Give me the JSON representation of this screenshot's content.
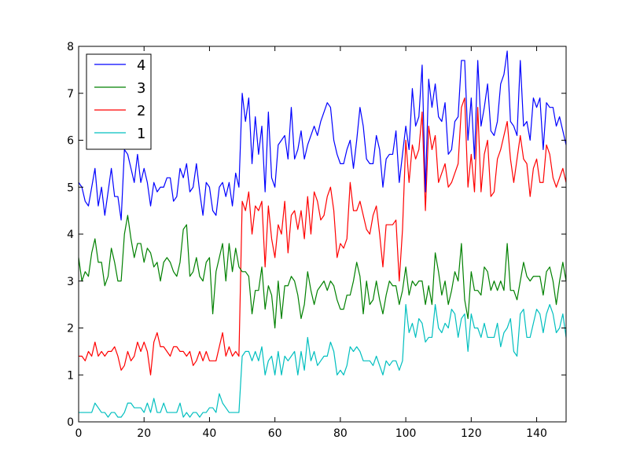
{
  "chart_data": {
    "type": "line",
    "title": "",
    "xlabel": "",
    "ylabel": "",
    "xlim": [
      0,
      149
    ],
    "ylim": [
      0,
      8
    ],
    "xticks": [
      0,
      20,
      40,
      60,
      80,
      100,
      120,
      140
    ],
    "yticks": [
      0,
      1,
      2,
      3,
      4,
      5,
      6,
      7,
      8
    ],
    "grid": false,
    "legend_position": "top-left",
    "series": [
      {
        "name": "4",
        "color": "#0000ff",
        "values": [
          5.1,
          5.0,
          4.7,
          4.6,
          5.0,
          5.4,
          4.6,
          5.0,
          4.4,
          4.9,
          5.4,
          4.8,
          4.8,
          4.3,
          5.8,
          5.7,
          5.4,
          5.1,
          5.7,
          5.1,
          5.4,
          5.1,
          4.6,
          5.1,
          4.9,
          5.0,
          5.0,
          5.2,
          5.2,
          4.7,
          4.8,
          5.4,
          5.2,
          5.5,
          4.9,
          5.0,
          5.5,
          4.9,
          4.4,
          5.1,
          5.0,
          4.5,
          4.4,
          5.0,
          5.1,
          4.8,
          5.1,
          4.6,
          5.3,
          5.0,
          7.0,
          6.4,
          6.9,
          5.5,
          6.5,
          5.7,
          6.3,
          4.9,
          6.6,
          5.2,
          5.0,
          5.9,
          6.0,
          6.1,
          5.6,
          6.7,
          5.6,
          5.8,
          6.2,
          5.6,
          5.9,
          6.1,
          6.3,
          6.1,
          6.4,
          6.6,
          6.8,
          6.7,
          6.0,
          5.7,
          5.5,
          5.5,
          5.8,
          6.0,
          5.4,
          6.0,
          6.7,
          6.3,
          5.6,
          5.5,
          5.5,
          6.1,
          5.8,
          5.0,
          5.6,
          5.7,
          5.7,
          6.2,
          5.1,
          5.7,
          6.3,
          5.8,
          7.1,
          6.3,
          6.5,
          7.6,
          4.9,
          7.3,
          6.7,
          7.2,
          6.5,
          6.4,
          6.8,
          5.7,
          5.8,
          6.4,
          6.5,
          7.7,
          7.7,
          6.0,
          6.9,
          5.6,
          7.7,
          6.3,
          6.7,
          7.2,
          6.2,
          6.1,
          6.4,
          7.2,
          7.4,
          7.9,
          6.4,
          6.3,
          6.1,
          7.7,
          6.3,
          6.4,
          6.0,
          6.9,
          6.7,
          6.9,
          5.8,
          6.8,
          6.7,
          6.7,
          6.3,
          6.5,
          6.2,
          5.9
        ]
      },
      {
        "name": "3",
        "color": "#008000",
        "values": [
          3.5,
          3.0,
          3.2,
          3.1,
          3.6,
          3.9,
          3.4,
          3.4,
          2.9,
          3.1,
          3.7,
          3.4,
          3.0,
          3.0,
          4.0,
          4.4,
          3.9,
          3.5,
          3.8,
          3.8,
          3.4,
          3.7,
          3.6,
          3.3,
          3.4,
          3.0,
          3.4,
          3.5,
          3.4,
          3.2,
          3.1,
          3.4,
          4.1,
          4.2,
          3.1,
          3.2,
          3.5,
          3.1,
          3.0,
          3.4,
          3.5,
          2.3,
          3.2,
          3.5,
          3.8,
          3.0,
          3.8,
          3.2,
          3.7,
          3.3,
          3.2,
          3.2,
          3.1,
          2.3,
          2.8,
          2.8,
          3.3,
          2.4,
          2.9,
          2.7,
          2.0,
          3.0,
          2.2,
          2.9,
          2.9,
          3.1,
          3.0,
          2.7,
          2.2,
          2.5,
          3.2,
          2.8,
          2.5,
          2.8,
          2.9,
          3.0,
          2.8,
          3.0,
          2.9,
          2.6,
          2.4,
          2.4,
          2.7,
          2.7,
          3.0,
          3.4,
          3.1,
          2.3,
          3.0,
          2.5,
          2.6,
          3.0,
          2.6,
          2.3,
          2.7,
          3.0,
          2.9,
          2.9,
          2.5,
          2.8,
          3.3,
          2.7,
          3.0,
          2.9,
          3.0,
          3.0,
          2.5,
          2.9,
          2.5,
          3.6,
          3.2,
          2.7,
          3.0,
          2.5,
          2.8,
          3.2,
          3.0,
          3.8,
          2.6,
          2.2,
          3.2,
          2.8,
          2.8,
          2.7,
          3.3,
          3.2,
          2.8,
          3.0,
          2.8,
          3.0,
          2.8,
          3.8,
          2.8,
          2.8,
          2.6,
          3.0,
          3.4,
          3.1,
          3.0,
          3.1,
          3.1,
          3.1,
          2.7,
          3.2,
          3.3,
          3.0,
          2.5,
          3.0,
          3.4,
          3.0
        ]
      },
      {
        "name": "2",
        "color": "#ff0000",
        "values": [
          1.4,
          1.4,
          1.3,
          1.5,
          1.4,
          1.7,
          1.4,
          1.5,
          1.4,
          1.5,
          1.5,
          1.6,
          1.4,
          1.1,
          1.2,
          1.5,
          1.3,
          1.4,
          1.7,
          1.5,
          1.7,
          1.5,
          1.0,
          1.7,
          1.9,
          1.6,
          1.6,
          1.5,
          1.4,
          1.6,
          1.6,
          1.5,
          1.5,
          1.4,
          1.5,
          1.2,
          1.3,
          1.5,
          1.3,
          1.5,
          1.3,
          1.3,
          1.3,
          1.6,
          1.9,
          1.4,
          1.6,
          1.4,
          1.5,
          1.4,
          4.7,
          4.5,
          4.9,
          4.0,
          4.6,
          4.5,
          4.7,
          3.3,
          4.6,
          3.9,
          3.5,
          4.2,
          4.0,
          4.7,
          3.6,
          4.4,
          4.5,
          4.1,
          4.5,
          3.9,
          4.8,
          4.0,
          4.9,
          4.7,
          4.3,
          4.4,
          4.8,
          5.0,
          4.5,
          3.5,
          3.8,
          3.7,
          3.9,
          5.1,
          4.5,
          4.5,
          4.7,
          4.4,
          4.1,
          4.0,
          4.4,
          4.6,
          4.0,
          3.3,
          4.2,
          4.2,
          4.2,
          4.3,
          3.0,
          4.1,
          6.0,
          5.1,
          5.9,
          5.6,
          5.8,
          6.6,
          4.5,
          6.3,
          5.8,
          6.1,
          5.1,
          5.3,
          5.5,
          5.0,
          5.1,
          5.3,
          5.5,
          6.7,
          6.9,
          5.0,
          5.7,
          4.9,
          6.7,
          4.9,
          5.7,
          6.0,
          4.8,
          4.9,
          5.6,
          5.8,
          6.1,
          6.4,
          5.6,
          5.1,
          5.6,
          6.1,
          5.6,
          5.5,
          4.8,
          5.4,
          5.6,
          5.1,
          5.1,
          5.9,
          5.7,
          5.2,
          5.0,
          5.2,
          5.4,
          5.1
        ]
      },
      {
        "name": "1",
        "color": "#00bfbf",
        "values": [
          0.2,
          0.2,
          0.2,
          0.2,
          0.2,
          0.4,
          0.3,
          0.2,
          0.2,
          0.1,
          0.2,
          0.2,
          0.1,
          0.1,
          0.2,
          0.4,
          0.4,
          0.3,
          0.3,
          0.3,
          0.2,
          0.4,
          0.2,
          0.5,
          0.2,
          0.2,
          0.4,
          0.2,
          0.2,
          0.2,
          0.2,
          0.4,
          0.1,
          0.2,
          0.1,
          0.2,
          0.2,
          0.1,
          0.2,
          0.2,
          0.3,
          0.3,
          0.2,
          0.6,
          0.4,
          0.3,
          0.2,
          0.2,
          0.2,
          0.2,
          1.4,
          1.5,
          1.5,
          1.3,
          1.5,
          1.3,
          1.6,
          1.0,
          1.3,
          1.4,
          1.0,
          1.5,
          1.0,
          1.4,
          1.3,
          1.4,
          1.5,
          1.0,
          1.5,
          1.1,
          1.8,
          1.3,
          1.5,
          1.2,
          1.3,
          1.4,
          1.4,
          1.7,
          1.5,
          1.0,
          1.1,
          1.0,
          1.2,
          1.6,
          1.5,
          1.6,
          1.5,
          1.3,
          1.3,
          1.3,
          1.2,
          1.4,
          1.2,
          1.0,
          1.3,
          1.2,
          1.3,
          1.3,
          1.1,
          1.3,
          2.5,
          1.9,
          2.1,
          1.8,
          2.2,
          2.1,
          1.7,
          1.8,
          1.8,
          2.5,
          2.0,
          1.9,
          2.1,
          2.0,
          2.4,
          2.3,
          1.8,
          2.2,
          2.3,
          1.5,
          2.3,
          2.0,
          2.0,
          1.8,
          2.1,
          1.8,
          1.8,
          1.8,
          2.1,
          1.6,
          1.9,
          2.0,
          2.2,
          1.5,
          1.4,
          2.3,
          2.4,
          1.8,
          1.8,
          2.1,
          2.4,
          2.3,
          1.9,
          2.3,
          2.5,
          2.3,
          1.9,
          2.0,
          2.3,
          1.8
        ]
      }
    ]
  }
}
